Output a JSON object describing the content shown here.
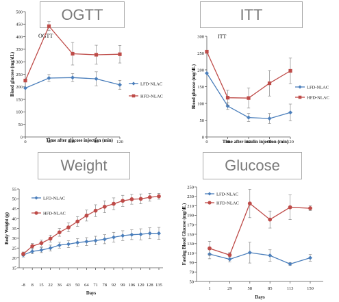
{
  "banners": [
    "OGTT",
    "ITT",
    "Weight",
    "Glucose"
  ],
  "chart_data": [
    {
      "type": "line",
      "title": "OGTT",
      "xlabel": "Time after glucose injection (min)",
      "ylabel": "Blood glucose (mg/dL)",
      "x": [
        0,
        30,
        60,
        90,
        120
      ],
      "xlim": [
        0,
        120
      ],
      "ylim": [
        0,
        500
      ],
      "yticks": [
        0,
        50,
        100,
        150,
        200,
        250,
        300,
        350,
        400,
        450,
        500
      ],
      "xticks": [
        "0",
        "30",
        "60",
        "90",
        "120"
      ],
      "legend_position": "right",
      "series": [
        {
          "name": "LFD-NLAC",
          "color": "#4a7ebb",
          "marker": "diamond",
          "values": [
            195,
            235,
            237,
            232,
            208
          ],
          "err": [
            0,
            14,
            16,
            28,
            18
          ]
        },
        {
          "name": "HFD-NLAC",
          "color": "#be4b48",
          "marker": "square",
          "values": [
            225,
            442,
            332,
            328,
            330
          ],
          "err": [
            0,
            18,
            45,
            38,
            35
          ]
        }
      ]
    },
    {
      "type": "line",
      "title": "ITT",
      "xlabel": "Time after insulin injection (min)",
      "ylabel": "Blood glucose (mg/dL)",
      "x": [
        0,
        30,
        60,
        90,
        120
      ],
      "xlim": [
        0,
        120
      ],
      "ylim": [
        0,
        300
      ],
      "yticks": [
        0,
        50,
        100,
        150,
        200,
        250,
        300
      ],
      "xticks": [
        "0",
        "30",
        "60",
        "90",
        "120"
      ],
      "legend_position": "right",
      "series": [
        {
          "name": "LFD-NLAC",
          "color": "#4a7ebb",
          "marker": "diamond",
          "values": [
            190,
            92,
            58,
            55,
            73
          ],
          "err": [
            0,
            10,
            12,
            15,
            25
          ]
        },
        {
          "name": "HFD-NLAC",
          "color": "#be4b48",
          "marker": "square",
          "values": [
            254,
            117,
            116,
            160,
            197
          ],
          "err": [
            0,
            22,
            30,
            38,
            38
          ]
        }
      ]
    },
    {
      "type": "line",
      "title": "Weight",
      "xlabel": "Days",
      "ylabel": "Body Weight (g)",
      "categories": [
        "-8",
        "8",
        "15",
        "22",
        "36",
        "43",
        "50",
        "64",
        "71",
        "78",
        "92",
        "99",
        "106",
        "120",
        "128",
        "135"
      ],
      "ylim": [
        15,
        55
      ],
      "yticks": [
        15,
        20,
        25,
        30,
        35,
        40,
        45,
        50,
        55
      ],
      "legend_position": "top-left",
      "series": [
        {
          "name": "LFD-NLAC",
          "color": "#4a7ebb",
          "marker": "diamond",
          "values": [
            21.5,
            23.3,
            24.0,
            25.0,
            26.5,
            27.0,
            27.8,
            28.3,
            28.8,
            29.5,
            30.5,
            31.3,
            31.8,
            32.0,
            32.5,
            32.5
          ],
          "err": [
            1.0,
            1.2,
            1.3,
            1.5,
            1.5,
            1.8,
            2.0,
            2.0,
            2.2,
            2.3,
            2.5,
            2.5,
            2.5,
            2.8,
            2.8,
            3.0
          ]
        },
        {
          "name": "HFD-NLAC",
          "color": "#be4b48",
          "marker": "circle",
          "values": [
            22.0,
            26.0,
            27.5,
            29.8,
            33.0,
            35.5,
            38.5,
            41.5,
            44.0,
            46.0,
            47.5,
            49.0,
            49.8,
            50.0,
            50.8,
            51.3
          ],
          "err": [
            1.0,
            1.3,
            1.5,
            1.8,
            2.0,
            2.3,
            2.5,
            2.8,
            3.0,
            3.0,
            3.0,
            2.8,
            2.5,
            2.5,
            2.0,
            1.5
          ]
        }
      ]
    },
    {
      "type": "line",
      "title": "Glucose",
      "xlabel": "Days",
      "ylabel": "Fasting Blood Glucose (mg/dL)",
      "categories": [
        "1",
        "29",
        "58",
        "85",
        "113",
        "150"
      ],
      "ylim": [
        50,
        250
      ],
      "yticks": [
        50,
        70,
        90,
        110,
        130,
        150,
        170,
        190,
        210,
        230,
        250
      ],
      "legend_position": "top-left",
      "series": [
        {
          "name": "LFD-NLAC",
          "color": "#4a7ebb",
          "marker": "diamond",
          "values": [
            108,
            97,
            111,
            105,
            87,
            100
          ],
          "err": [
            10,
            6,
            22,
            12,
            3,
            7
          ]
        },
        {
          "name": "HFD-NLAC",
          "color": "#be4b48",
          "marker": "circle",
          "values": [
            120,
            106,
            215,
            181,
            207,
            205
          ],
          "err": [
            15,
            5,
            30,
            18,
            26,
            5
          ]
        }
      ]
    }
  ]
}
